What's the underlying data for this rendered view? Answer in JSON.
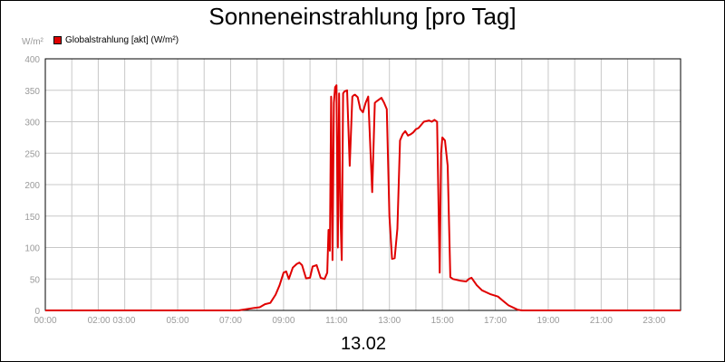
{
  "chart_data": {
    "type": "line",
    "title": "Sonneneinstrahlung [pro Tag]",
    "ylabel": "W/m²",
    "xlabel": "13.02",
    "ylim": [
      0,
      400
    ],
    "xlim": [
      0,
      24
    ],
    "grid": true,
    "legend_position": "top-left",
    "x_tick_labels": [
      "00:00",
      "02:00 03:00",
      "05:00",
      "07:00",
      "09:00",
      "11:00",
      "13:00",
      "15:00",
      "17:00",
      "19:00",
      "21:00",
      "23:00"
    ],
    "y_ticks": [
      0,
      50,
      100,
      150,
      200,
      250,
      300,
      350,
      400
    ],
    "series": [
      {
        "name": "Globalstrahlung [akt] (W/m²)",
        "color": "#e00000",
        "x": [
          0.0,
          7.3,
          7.6,
          7.9,
          8.1,
          8.3,
          8.5,
          8.7,
          8.85,
          9.0,
          9.1,
          9.2,
          9.35,
          9.5,
          9.6,
          9.7,
          9.85,
          10.0,
          10.1,
          10.25,
          10.4,
          10.55,
          10.65,
          10.7,
          10.75,
          10.8,
          10.85,
          10.9,
          10.95,
          11.0,
          11.05,
          11.1,
          11.15,
          11.2,
          11.25,
          11.3,
          11.4,
          11.5,
          11.6,
          11.65,
          11.7,
          11.8,
          11.9,
          12.0,
          12.1,
          12.2,
          12.35,
          12.45,
          12.5,
          12.6,
          12.7,
          12.8,
          12.9,
          13.0,
          13.1,
          13.2,
          13.3,
          13.4,
          13.5,
          13.6,
          13.7,
          13.8,
          13.9,
          14.0,
          14.1,
          14.3,
          14.5,
          14.6,
          14.7,
          14.8,
          14.9,
          14.95,
          15.0,
          15.1,
          15.2,
          15.3,
          15.4,
          15.7,
          15.9,
          16.0,
          16.1,
          16.3,
          16.5,
          16.8,
          17.1,
          17.3,
          17.5,
          17.7,
          17.85,
          18.0,
          24.0
        ],
        "values": [
          0,
          0,
          2,
          4,
          5,
          10,
          12,
          25,
          40,
          60,
          62,
          50,
          68,
          74,
          76,
          72,
          51,
          52,
          70,
          72,
          52,
          50,
          60,
          128,
          95,
          340,
          80,
          330,
          355,
          358,
          100,
          345,
          150,
          80,
          345,
          348,
          350,
          230,
          340,
          342,
          343,
          339,
          320,
          315,
          330,
          340,
          188,
          330,
          332,
          335,
          338,
          330,
          320,
          150,
          82,
          83,
          130,
          270,
          280,
          285,
          278,
          280,
          283,
          288,
          290,
          300,
          302,
          300,
          303,
          300,
          60,
          250,
          275,
          270,
          230,
          53,
          50,
          47,
          46,
          50,
          52,
          40,
          32,
          26,
          22,
          15,
          8,
          4,
          1,
          0,
          0
        ]
      }
    ]
  }
}
